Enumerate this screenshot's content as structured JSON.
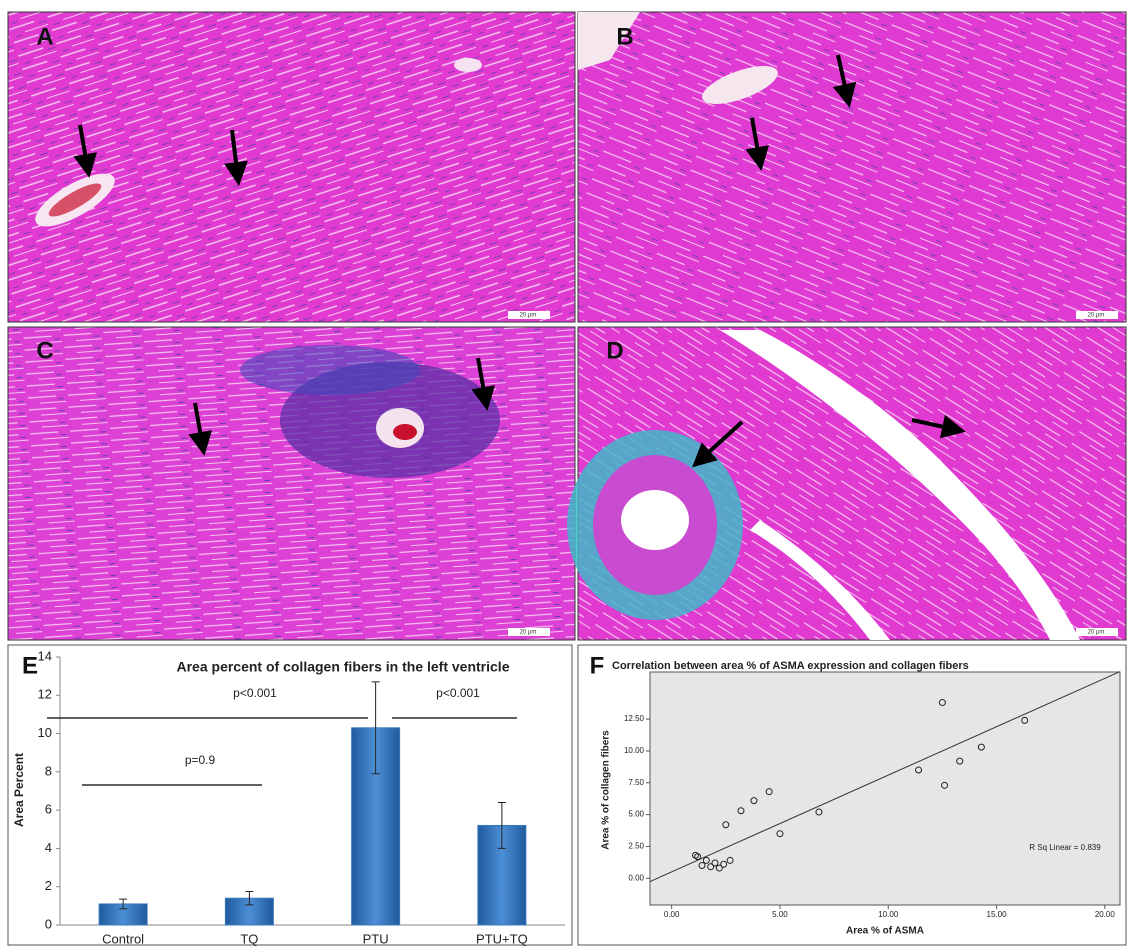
{
  "panels": [
    {
      "label": "A",
      "scale_bar": "20 µm"
    },
    {
      "label": "B",
      "scale_bar": "20 µm"
    },
    {
      "label": "C",
      "scale_bar": "20 µm"
    },
    {
      "label": "D",
      "scale_bar": "20 µm"
    }
  ],
  "chart_data": [
    {
      "type": "bar",
      "panel": "E",
      "title": "Area percent of collagen fibers in the left ventricle",
      "y_label": "Area Percent",
      "categories": [
        "Control",
        "TQ",
        "PTU",
        "PTU+TQ"
      ],
      "values": [
        1.1,
        1.4,
        10.3,
        5.2
      ],
      "errors": [
        0.25,
        0.35,
        2.4,
        1.2
      ],
      "color": "#3a78bd",
      "ylim": [
        0,
        14
      ],
      "yticks": [
        0,
        2,
        4,
        6,
        8,
        10,
        12,
        14
      ],
      "annotations": [
        "p=0.9",
        "p<0.001",
        "p<0.001"
      ]
    },
    {
      "type": "scatter",
      "panel": "F",
      "title": "Correlation between area % of ASMA expression and collagen fibers",
      "x_label": "Area % of ASMA",
      "y_label": "Area % of collagen fibers",
      "x": [
        1.1,
        1.2,
        1.4,
        1.6,
        1.8,
        2.0,
        2.2,
        2.4,
        2.7,
        2.5,
        3.2,
        3.8,
        4.5,
        5.0,
        6.8,
        11.4,
        12.5,
        12.6,
        13.3,
        14.3,
        16.3
      ],
      "values": [
        1.8,
        1.7,
        1.0,
        1.4,
        0.9,
        1.2,
        0.8,
        1.1,
        1.4,
        4.2,
        5.3,
        6.1,
        6.8,
        3.5,
        5.2,
        8.5,
        13.8,
        7.3,
        9.2,
        10.3,
        12.4
      ],
      "trend_line": {
        "slope": 0.76,
        "intercept": 0.5
      },
      "annotation": "R Sq Linear = 0.839",
      "xlim": [
        -1.0,
        20.7
      ],
      "ylim": [
        -2.1,
        16.2
      ],
      "xticks": [
        {
          "value": 0,
          "label": "0.00"
        },
        {
          "value": 5,
          "label": "5.00"
        },
        {
          "value": 10,
          "label": "10.00"
        },
        {
          "value": 15,
          "label": "15.00"
        },
        {
          "value": 20,
          "label": "20.00"
        }
      ],
      "yticks": [
        {
          "value": 0,
          "label": "0.00"
        },
        {
          "value": 2.5,
          "label": "2.50"
        },
        {
          "value": 5,
          "label": "5.00"
        },
        {
          "value": 7.5,
          "label": "7.50"
        },
        {
          "value": 10,
          "label": "10.00"
        },
        {
          "value": 12.5,
          "label": "12.50"
        }
      ],
      "plot_color": "#e6e6e6"
    }
  ]
}
